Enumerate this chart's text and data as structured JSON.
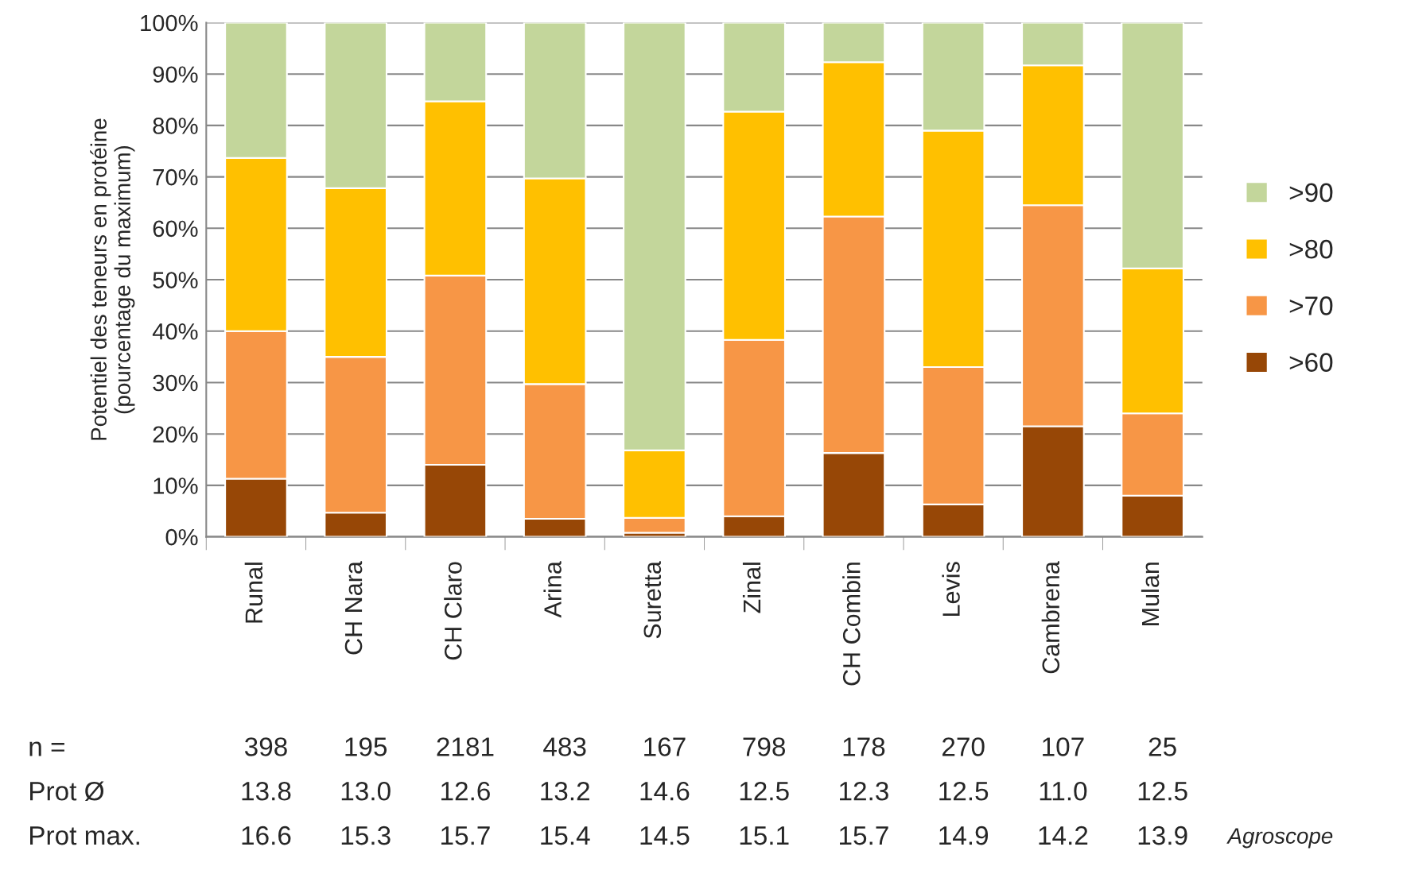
{
  "chart_data": {
    "type": "bar",
    "stacked": true,
    "ylabel": "Potentiel des teneurs en protéine\n(pourcentage du maximum)",
    "categories": [
      "Runal",
      "CH Nara",
      "CH Claro",
      "Arina",
      "Suretta",
      "Zinal",
      "CH Combin",
      "Levis",
      "Cambrena",
      "Mulan"
    ],
    "series": [
      {
        "name": ">60",
        "color": "#974706",
        "values": [
          11.3,
          4.7,
          14,
          3.5,
          0.8,
          4,
          16.3,
          6.3,
          21.5,
          8
        ]
      },
      {
        "name": ">70",
        "color": "#f79646",
        "values": [
          28.7,
          30.3,
          36.8,
          26.2,
          2.9,
          34.3,
          46,
          26.7,
          43,
          16
        ]
      },
      {
        "name": ">80",
        "color": "#ffc000",
        "values": [
          33.7,
          32.8,
          33.9,
          40,
          13.1,
          44.4,
          30,
          46,
          27.2,
          28.2
        ]
      },
      {
        "name": ">90",
        "color": "#c3d69b",
        "values": [
          26.3,
          32.2,
          15.3,
          30.3,
          83.2,
          17.3,
          7.7,
          21,
          8.3,
          47.8
        ]
      }
    ],
    "ylim": [
      0,
      100
    ],
    "yticks": [
      {
        "value": 0,
        "label": "0%"
      },
      {
        "value": 10,
        "label": "10%"
      },
      {
        "value": 20,
        "label": "20%"
      },
      {
        "value": 30,
        "label": "30%"
      },
      {
        "value": 40,
        "label": "40%"
      },
      {
        "value": 50,
        "label": "50%"
      },
      {
        "value": 60,
        "label": "60%"
      },
      {
        "value": 70,
        "label": "70%"
      },
      {
        "value": 80,
        "label": "80%"
      },
      {
        "value": 90,
        "label": "90%"
      },
      {
        "value": 100,
        "label": "100%"
      }
    ],
    "grid": "y",
    "legend": "right",
    "annotations": [
      "n =",
      "398",
      "195",
      "2181",
      "483",
      "167",
      "798",
      "178",
      "270",
      "107",
      "25",
      "Prot Ø",
      "13.8",
      "13.0",
      "12.6",
      "13.2",
      "14.6",
      "12.5",
      "12.3",
      "12.5",
      "11.0",
      "12.5",
      "Prot max.",
      "16.6",
      "15.3",
      "15.7",
      "15.4",
      "14.5",
      "15.1",
      "15.7",
      "14.9",
      "14.2",
      "13.9",
      "Agroscope"
    ]
  }
}
